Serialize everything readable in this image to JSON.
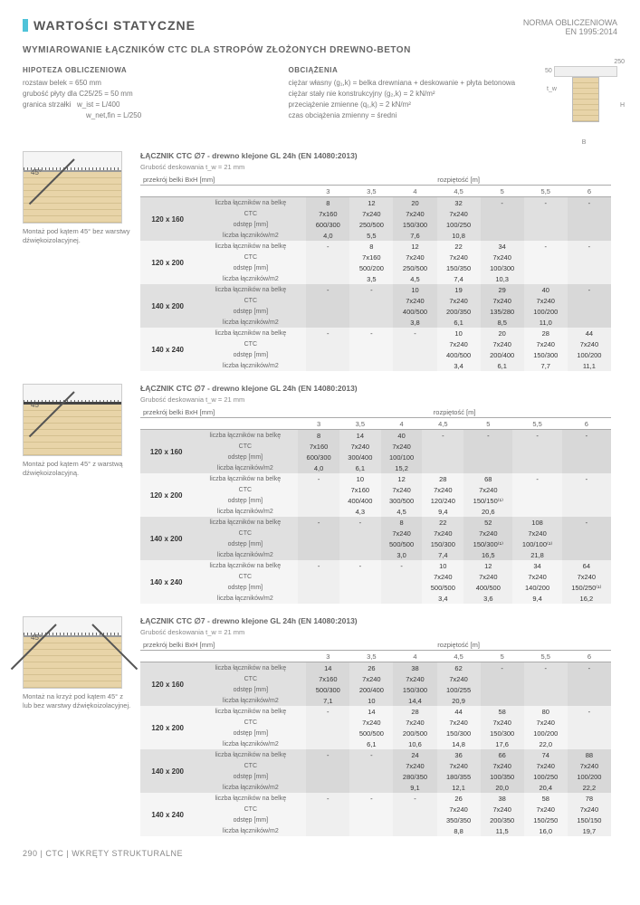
{
  "header": {
    "title": "WARTOŚCI STATYCZNE",
    "norm_l1": "NORMA OBLICZENIOWA",
    "norm_l2": "EN 1995:2014",
    "subtitle": "WYMIAROWANIE ŁĄCZNIKÓW CTC DLA STROPÓW ZŁOŻONYCH DREWNO-BETON"
  },
  "hypothesis": {
    "head": "HIPOTEZA OBLICZENIOWA",
    "l1": "rozstaw belek = 650 mm",
    "l2": "grubość płyty dla C25/25 = 50 mm",
    "l3": "granica strzałki",
    "l4": "w_ist = L/400",
    "l5": "w_net,fin = L/250"
  },
  "loads": {
    "head": "OBCIĄŻENIA",
    "l1": "ciężar własny (g₁,k) = belka drewniana + deskowanie + płyta betonowa",
    "l2": "ciężar stały nie konstrukcyjny (g₂,k) = 2 kN/m²",
    "l3": "przeciążenie zmienne (q₁,k) = 2 kN/m²",
    "l4": "czas obciążenia zmienny = średni"
  },
  "span_label": "rozpiętość [m]",
  "bxh_label": "przekrój belki BxH [mm]",
  "cols": [
    "3",
    "3,5",
    "4",
    "4,5",
    "5",
    "5,5",
    "6"
  ],
  "row_labels": [
    "liczba łączników na belkę",
    "CTC",
    "odstęp [mm]",
    "liczba łączników/m2"
  ],
  "bh_sizes": [
    "120 x 160",
    "120 x 200",
    "140 x 200",
    "140 x 240"
  ],
  "sec_title": "ŁĄCZNIK CTC ∅7 - drewno klejone GL 24h (EN 14080:2013)",
  "sec_sub": "Grubość deskowania t_w = 21 mm",
  "diag1_cap": "Montaż pod kątem 45° bez warstwy dźwiękoizolacyjnej.",
  "diag2_cap": "Montaż pod kątem 45° z warstwą dźwiękoizolacyjną.",
  "diag3_cap": "Montaż na krzyż pod kątem 45° z lub bez warstwy dźwiękoizolacyjnej.",
  "footer": "290 | CTC | WKRĘTY STRUKTURALNE",
  "t1": {
    "r1": [
      [
        "8",
        "7x160",
        "600/300",
        "4,0"
      ],
      [
        "12",
        "7x240",
        "250/500",
        "5,5"
      ],
      [
        "20",
        "7x240",
        "150/300",
        "7,6"
      ],
      [
        "32",
        "7x240",
        "100/250",
        "10,8"
      ],
      [
        "-",
        "",
        "",
        ""
      ],
      [
        "-",
        "",
        "",
        ""
      ],
      [
        "-",
        "",
        "",
        ""
      ]
    ],
    "r2": [
      [
        "-",
        "",
        "",
        ""
      ],
      [
        "8",
        "7x160",
        "500/200",
        "3,5"
      ],
      [
        "12",
        "7x240",
        "250/500",
        "4,5"
      ],
      [
        "22",
        "7x240",
        "150/350",
        "7,4"
      ],
      [
        "34",
        "7x240",
        "100/300",
        "10,3"
      ],
      [
        "-",
        "",
        "",
        ""
      ],
      [
        "-",
        "",
        "",
        ""
      ]
    ],
    "r3": [
      [
        "-",
        "",
        "",
        ""
      ],
      [
        "-",
        "",
        "",
        ""
      ],
      [
        "10",
        "7x240",
        "400/500",
        "3,8"
      ],
      [
        "19",
        "7x240",
        "200/350",
        "6,1"
      ],
      [
        "29",
        "7x240",
        "135/280",
        "8,5"
      ],
      [
        "40",
        "7x240",
        "100/200",
        "11,0"
      ],
      [
        "-",
        "",
        "",
        ""
      ]
    ],
    "r4": [
      [
        "-",
        "",
        "",
        ""
      ],
      [
        "-",
        "",
        "",
        ""
      ],
      [
        "-",
        "",
        "",
        ""
      ],
      [
        "10",
        "7x240",
        "400/500",
        "3,4"
      ],
      [
        "20",
        "7x240",
        "200/400",
        "6,1"
      ],
      [
        "28",
        "7x240",
        "150/300",
        "7,7"
      ],
      [
        "44",
        "7x240",
        "100/200",
        "11,1"
      ]
    ]
  },
  "t2": {
    "r1": [
      [
        "8",
        "7x160",
        "600/300",
        "4,0"
      ],
      [
        "14",
        "7x240",
        "300/400",
        "6,1"
      ],
      [
        "40",
        "7x240",
        "100/100",
        "15,2"
      ],
      [
        "-",
        "",
        "",
        ""
      ],
      [
        "-",
        "",
        "",
        ""
      ],
      [
        "-",
        "",
        "",
        ""
      ],
      [
        "-",
        "",
        "",
        ""
      ]
    ],
    "r2": [
      [
        "-",
        "",
        "",
        ""
      ],
      [
        "10",
        "7x160",
        "400/400",
        "4,3"
      ],
      [
        "12",
        "7x240",
        "300/500",
        "4,5"
      ],
      [
        "28",
        "7x240",
        "120/240",
        "9,4"
      ],
      [
        "68",
        "7x240",
        "150/150⁽¹⁾",
        "20,6"
      ],
      [
        "-",
        "",
        "",
        ""
      ],
      [
        "-",
        "",
        "",
        ""
      ]
    ],
    "r3": [
      [
        "-",
        "",
        "",
        ""
      ],
      [
        "-",
        "",
        "",
        ""
      ],
      [
        "8",
        "7x240",
        "500/500",
        "3,0"
      ],
      [
        "22",
        "7x240",
        "150/300",
        "7,4"
      ],
      [
        "52",
        "7x240",
        "150/300⁽¹⁾",
        "16,5"
      ],
      [
        "108",
        "7x240",
        "100/100⁽¹⁾",
        "21,8"
      ],
      [
        "-",
        "",
        "",
        ""
      ]
    ],
    "r4": [
      [
        "-",
        "",
        "",
        ""
      ],
      [
        "-",
        "",
        "",
        ""
      ],
      [
        "-",
        "",
        "",
        ""
      ],
      [
        "10",
        "7x240",
        "500/500",
        "3,4"
      ],
      [
        "12",
        "7x240",
        "400/500",
        "3,6"
      ],
      [
        "34",
        "7x240",
        "140/200",
        "9,4"
      ],
      [
        "64",
        "7x240",
        "150/250⁽¹⁾",
        "16,2"
      ]
    ]
  },
  "t3": {
    "r1": [
      [
        "14",
        "7x160",
        "500/300",
        "7,1"
      ],
      [
        "26",
        "7x240",
        "200/400",
        "10"
      ],
      [
        "38",
        "7x240",
        "150/300",
        "14,4"
      ],
      [
        "62",
        "7x240",
        "100/255",
        "20,9"
      ],
      [
        "-",
        "",
        "",
        ""
      ],
      [
        "-",
        "",
        "",
        ""
      ],
      [
        "-",
        "",
        "",
        ""
      ]
    ],
    "r2": [
      [
        "-",
        "",
        "",
        ""
      ],
      [
        "14",
        "7x240",
        "500/500",
        "6,1"
      ],
      [
        "28",
        "7x240",
        "200/500",
        "10,6"
      ],
      [
        "44",
        "7x240",
        "150/300",
        "14,8"
      ],
      [
        "58",
        "7x240",
        "150/300",
        "17,6"
      ],
      [
        "80",
        "7x240",
        "100/200",
        "22,0"
      ],
      [
        "-",
        "",
        "",
        ""
      ]
    ],
    "r3": [
      [
        "-",
        "",
        "",
        ""
      ],
      [
        "-",
        "",
        "",
        ""
      ],
      [
        "24",
        "7x240",
        "280/350",
        "9,1"
      ],
      [
        "36",
        "7x240",
        "180/355",
        "12,1"
      ],
      [
        "66",
        "7x240",
        "100/350",
        "20,0"
      ],
      [
        "74",
        "7x240",
        "100/250",
        "20,4"
      ],
      [
        "88",
        "7x240",
        "100/200",
        "22,2"
      ]
    ],
    "r4": [
      [
        "-",
        "",
        "",
        ""
      ],
      [
        "-",
        "",
        "",
        ""
      ],
      [
        "-",
        "",
        "",
        ""
      ],
      [
        "26",
        "7x240",
        "350/350",
        "8,8"
      ],
      [
        "38",
        "7x240",
        "200/350",
        "11,5"
      ],
      [
        "58",
        "7x240",
        "150/250",
        "16,0"
      ],
      [
        "78",
        "7x240",
        "150/150",
        "19,7"
      ]
    ]
  }
}
